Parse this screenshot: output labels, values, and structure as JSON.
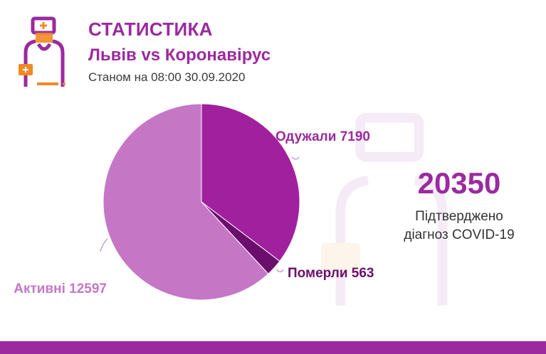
{
  "header": {
    "title": "СТАТИСТИКА",
    "subtitle": "Львів vs Коронавірус",
    "date": "Станом на 08:00 30.09.2020"
  },
  "summary": {
    "total": "20350",
    "label_line1": "Підтверджено",
    "label_line2": "діагноз COVID-19"
  },
  "colors": {
    "brand": "#9b2a9f",
    "recovered": "#a1209e",
    "died": "#6b0f6d",
    "active": "#c577c6",
    "accent_orange": "#f08a24"
  },
  "chart_data": {
    "type": "pie",
    "title": "",
    "categories": [
      "Одужали",
      "Померли",
      "Активні"
    ],
    "values": [
      7190,
      563,
      12597
    ],
    "labels": [
      "Одужали 7190",
      "Померли 563",
      "Активні 12597"
    ],
    "legend": "none"
  }
}
